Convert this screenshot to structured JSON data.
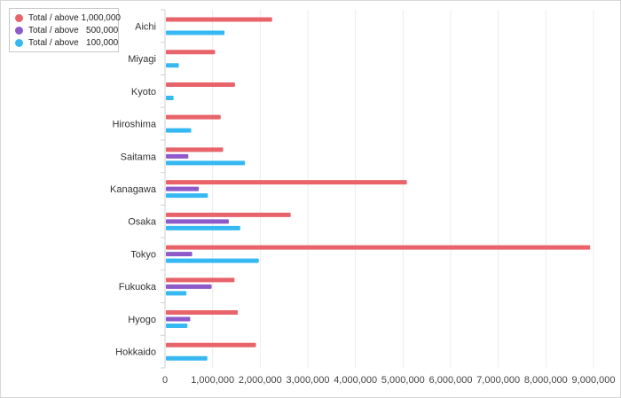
{
  "chart_data": {
    "type": "bar",
    "orientation": "horizontal",
    "categories": [
      "Aichi",
      "Miyagi",
      "Kyoto",
      "Hiroshima",
      "Saitama",
      "Kanagawa",
      "Osaka",
      "Tokyo",
      "Fukuoka",
      "Hyogo",
      "Hokkaido"
    ],
    "series": [
      {
        "name": "Total / above 1,000,000",
        "color": "#e8636a",
        "values": [
          2250000,
          1050000,
          1470000,
          1170000,
          1220000,
          5080000,
          2640000,
          8930000,
          1460000,
          1530000,
          1910000
        ]
      },
      {
        "name": "Total / above   500,000",
        "color": "#8e5ac9",
        "values": [
          0,
          0,
          0,
          0,
          490000,
          710000,
          1340000,
          570000,
          980000,
          530000,
          0
        ]
      },
      {
        "name": "Total / above   100,000",
        "color": "#36b9f2",
        "values": [
          1250000,
          290000,
          180000,
          550000,
          1680000,
          900000,
          1580000,
          1970000,
          450000,
          470000,
          890000
        ]
      }
    ],
    "xlim": [
      0,
      9000000
    ],
    "x_ticks": [
      0,
      1000000,
      2000000,
      3000000,
      4000000,
      5000000,
      6000000,
      7000000,
      8000000,
      9000000
    ],
    "x_tick_labels": [
      "0",
      "1,000,000",
      "2,000,000",
      "3,000,000",
      "4,000,000",
      "5,000,000",
      "6,000,000",
      "7,000,000",
      "8,000,000",
      "9,000,000"
    ],
    "grid": true,
    "legend_position": "top-left"
  }
}
